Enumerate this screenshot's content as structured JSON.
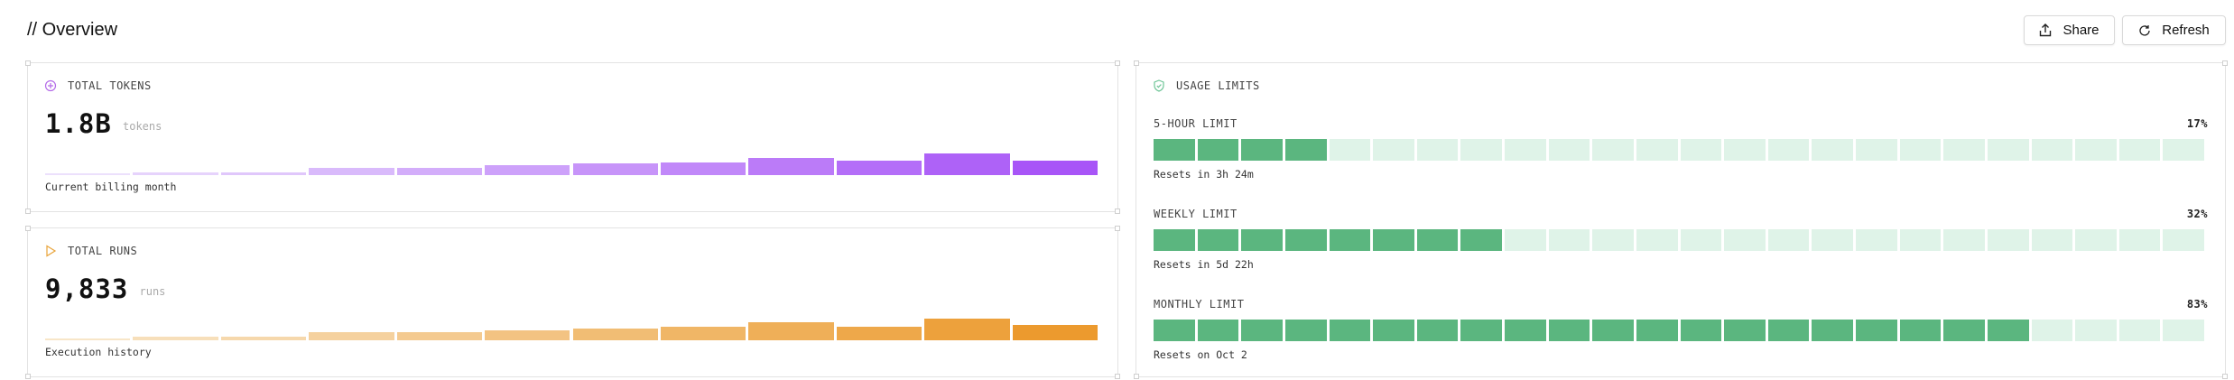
{
  "header": {
    "title": "// Overview",
    "buttons": [
      "Share",
      "Refresh"
    ]
  },
  "cards": [
    {
      "title": "TOTAL TOKENS",
      "value": "1.8B",
      "unit": "tokens",
      "caption": "Current billing month",
      "bars": [
        1,
        2,
        2,
        5,
        5,
        7,
        8,
        9,
        12,
        10,
        15,
        10
      ],
      "color_from": "#ece0fc",
      "color_to": "#a855f7"
    },
    {
      "title": "TOTAL RUNS",
      "value": "9,833",
      "unit": "runs",
      "caption": "Execution history",
      "bars": [
        1,
        2,
        2,
        4,
        4,
        5,
        6,
        7,
        9,
        7,
        11,
        8
      ],
      "color_from": "#f8e6c8",
      "color_to": "#ec9a2e"
    }
  ],
  "limits": {
    "title": "USAGE LIMITS",
    "fill": "#5bb67f",
    "empty": "#dff3e8",
    "items": [
      {
        "name": "5-HOUR LIMIT",
        "value": 17,
        "label": "17%",
        "reset": "Resets in 3h 24m"
      },
      {
        "name": "WEEKLY LIMIT",
        "value": 32,
        "label": "32%",
        "reset": "Resets in 5d 22h"
      },
      {
        "name": "MONTHLY LIMIT",
        "value": 83,
        "label": "83%",
        "reset": "Resets on Oct 2"
      }
    ]
  }
}
